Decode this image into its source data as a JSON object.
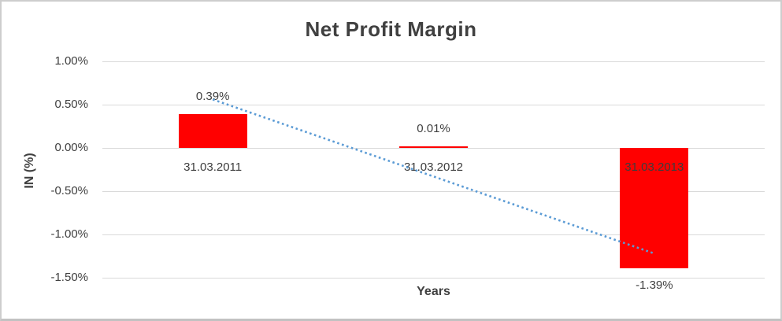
{
  "chart_data": {
    "type": "bar",
    "title": "Net Profit Margin",
    "xlabel": "Years",
    "ylabel": "IN (%)",
    "categories": [
      "31.03.2011",
      "31.03.2012",
      "31.03.2013"
    ],
    "values": [
      0.39,
      0.01,
      -1.39
    ],
    "data_labels": [
      "0.39%",
      "0.01%",
      "-1.39%"
    ],
    "ylim": [
      -1.5,
      1.0
    ],
    "yticks": [
      {
        "value": 1.0,
        "label": "1.00%"
      },
      {
        "value": 0.5,
        "label": "0.50%"
      },
      {
        "value": 0.0,
        "label": "0.00%"
      },
      {
        "value": -0.5,
        "label": "-0.50%"
      },
      {
        "value": -1.0,
        "label": "-1.00%"
      },
      {
        "value": -1.5,
        "label": "-1.50%"
      }
    ],
    "grid": true,
    "legend": false,
    "bar_color": "#ff0000",
    "text_color": "#404040",
    "gridline_color": "#d9d9d9",
    "trendline": {
      "type": "linear",
      "style": "dotted",
      "color": "#5b9bd5",
      "start_value": 0.56,
      "end_value": -1.22
    }
  }
}
